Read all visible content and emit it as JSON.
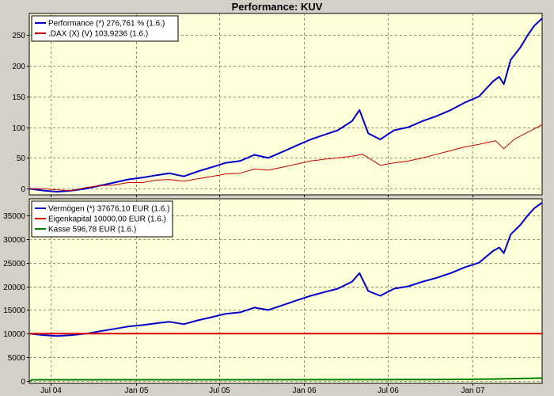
{
  "chart_data": [
    {
      "type": "line",
      "title": "Performance: KUV",
      "xlabel": "",
      "ylabel": "",
      "x_ticks": [
        "Jul 04",
        "Jan 05",
        "Jul 05",
        "Jan 06",
        "Jul 06",
        "Jan 07"
      ],
      "y_ticks": [
        "0",
        "50",
        "100",
        "150",
        "200",
        "250"
      ],
      "xlim": [
        "2004-05-15",
        "2007-06-01"
      ],
      "ylim": [
        -10,
        285
      ],
      "grid": true,
      "legend_position": "top-left",
      "series": [
        {
          "name": "Performance (*) 276,761 % (1.6.)",
          "color": "#0000cc",
          "points": [
            [
              "2004-05-15",
              0
            ],
            [
              "2004-06-15",
              -3
            ],
            [
              "2004-07-15",
              -5
            ],
            [
              "2004-08-15",
              -3
            ],
            [
              "2004-09-15",
              0
            ],
            [
              "2004-10-15",
              5
            ],
            [
              "2004-11-15",
              10
            ],
            [
              "2004-12-15",
              15
            ],
            [
              "2005-01-15",
              18
            ],
            [
              "2005-02-15",
              22
            ],
            [
              "2005-03-15",
              25
            ],
            [
              "2005-04-15",
              20
            ],
            [
              "2005-05-15",
              28
            ],
            [
              "2005-06-15",
              35
            ],
            [
              "2005-07-15",
              42
            ],
            [
              "2005-08-15",
              45
            ],
            [
              "2005-09-15",
              55
            ],
            [
              "2005-10-15",
              50
            ],
            [
              "2005-11-15",
              60
            ],
            [
              "2005-12-15",
              70
            ],
            [
              "2006-01-15",
              80
            ],
            [
              "2006-02-15",
              88
            ],
            [
              "2006-03-15",
              95
            ],
            [
              "2006-04-15",
              110
            ],
            [
              "2006-05-01",
              128
            ],
            [
              "2006-05-20",
              90
            ],
            [
              "2006-06-15",
              80
            ],
            [
              "2006-07-15",
              95
            ],
            [
              "2006-08-15",
              100
            ],
            [
              "2006-09-15",
              110
            ],
            [
              "2006-10-15",
              118
            ],
            [
              "2006-11-15",
              128
            ],
            [
              "2006-12-15",
              140
            ],
            [
              "2007-01-15",
              150
            ],
            [
              "2007-02-15",
              175
            ],
            [
              "2007-02-28",
              182
            ],
            [
              "2007-03-10",
              170
            ],
            [
              "2007-03-25",
              210
            ],
            [
              "2007-04-15",
              230
            ],
            [
              "2007-05-01",
              250
            ],
            [
              "2007-05-15",
              265
            ],
            [
              "2007-06-01",
              277
            ]
          ]
        },
        {
          "name": ".DAX (X) (V) 103,9236 (1.6.)",
          "color": "#cc0000",
          "points": [
            [
              "2004-05-15",
              0
            ],
            [
              "2004-06-15",
              0
            ],
            [
              "2004-07-15",
              -2
            ],
            [
              "2004-08-15",
              -3
            ],
            [
              "2004-09-15",
              2
            ],
            [
              "2004-10-15",
              5
            ],
            [
              "2004-11-15",
              6
            ],
            [
              "2004-12-15",
              10
            ],
            [
              "2005-01-15",
              10
            ],
            [
              "2005-02-15",
              14
            ],
            [
              "2005-03-15",
              15
            ],
            [
              "2005-04-15",
              12
            ],
            [
              "2005-05-15",
              16
            ],
            [
              "2005-06-15",
              20
            ],
            [
              "2005-07-15",
              24
            ],
            [
              "2005-08-15",
              25
            ],
            [
              "2005-09-15",
              32
            ],
            [
              "2005-10-15",
              30
            ],
            [
              "2005-11-15",
              35
            ],
            [
              "2005-12-15",
              40
            ],
            [
              "2006-01-15",
              45
            ],
            [
              "2006-02-15",
              48
            ],
            [
              "2006-03-15",
              50
            ],
            [
              "2006-04-15",
              53
            ],
            [
              "2006-05-08",
              56
            ],
            [
              "2006-06-15",
              38
            ],
            [
              "2006-07-15",
              42
            ],
            [
              "2006-08-15",
              45
            ],
            [
              "2006-09-15",
              50
            ],
            [
              "2006-10-15",
              56
            ],
            [
              "2006-11-15",
              62
            ],
            [
              "2006-12-15",
              68
            ],
            [
              "2007-01-15",
              72
            ],
            [
              "2007-02-20",
              78
            ],
            [
              "2007-03-10",
              65
            ],
            [
              "2007-04-01",
              80
            ],
            [
              "2007-05-01",
              92
            ],
            [
              "2007-06-01",
              104
            ]
          ]
        }
      ]
    },
    {
      "type": "line",
      "title": "",
      "xlabel": "",
      "ylabel": "",
      "x_ticks": [
        "Jul 04",
        "Jan 05",
        "Jul 05",
        "Jan 06",
        "Jul 06",
        "Jan 07"
      ],
      "y_ticks": [
        "0",
        "5000",
        "10000",
        "15000",
        "20000",
        "25000",
        "30000",
        "35000"
      ],
      "xlim": [
        "2004-05-15",
        "2007-06-01"
      ],
      "ylim": [
        -500,
        38500
      ],
      "grid": true,
      "legend_position": "top-left",
      "series": [
        {
          "name": "Vermögen (*) 37676,10 EUR (1.6.)",
          "color": "#0000cc",
          "points": [
            [
              "2004-05-15",
              10000
            ],
            [
              "2004-06-15",
              9700
            ],
            [
              "2004-07-15",
              9500
            ],
            [
              "2004-08-15",
              9700
            ],
            [
              "2004-09-15",
              10000
            ],
            [
              "2004-10-15",
              10500
            ],
            [
              "2004-11-15",
              11000
            ],
            [
              "2004-12-15",
              11500
            ],
            [
              "2005-01-15",
              11800
            ],
            [
              "2005-02-15",
              12200
            ],
            [
              "2005-03-15",
              12500
            ],
            [
              "2005-04-15",
              12000
            ],
            [
              "2005-05-15",
              12800
            ],
            [
              "2005-06-15",
              13500
            ],
            [
              "2005-07-15",
              14200
            ],
            [
              "2005-08-15",
              14500
            ],
            [
              "2005-09-15",
              15500
            ],
            [
              "2005-10-15",
              15000
            ],
            [
              "2005-11-15",
              16000
            ],
            [
              "2005-12-15",
              17000
            ],
            [
              "2006-01-15",
              18000
            ],
            [
              "2006-02-15",
              18800
            ],
            [
              "2006-03-15",
              19500
            ],
            [
              "2006-04-15",
              21000
            ],
            [
              "2006-05-01",
              22800
            ],
            [
              "2006-05-20",
              19000
            ],
            [
              "2006-06-15",
              18000
            ],
            [
              "2006-07-15",
              19500
            ],
            [
              "2006-08-15",
              20000
            ],
            [
              "2006-09-15",
              21000
            ],
            [
              "2006-10-15",
              21800
            ],
            [
              "2006-11-15",
              22800
            ],
            [
              "2006-12-15",
              24000
            ],
            [
              "2007-01-15",
              25000
            ],
            [
              "2007-02-15",
              27500
            ],
            [
              "2007-02-28",
              28200
            ],
            [
              "2007-03-10",
              27000
            ],
            [
              "2007-03-25",
              31000
            ],
            [
              "2007-04-15",
              33000
            ],
            [
              "2007-05-01",
              35000
            ],
            [
              "2007-05-15",
              36500
            ],
            [
              "2007-06-01",
              37676
            ]
          ]
        },
        {
          "name": "Eigenkapital 10000,00 EUR (1.6.)",
          "color": "#dd0000",
          "points": [
            [
              "2004-05-15",
              10000
            ],
            [
              "2007-06-01",
              10000
            ]
          ]
        },
        {
          "name": "Kasse 596,78 EUR (1.6.)",
          "color": "#008000",
          "points": [
            [
              "2004-05-15",
              0
            ],
            [
              "2004-05-18",
              0
            ],
            [
              "2004-05-20",
              250
            ],
            [
              "2005-07-15",
              250
            ],
            [
              "2006-10-15",
              300
            ],
            [
              "2007-02-15",
              400
            ],
            [
              "2007-06-01",
              597
            ]
          ]
        }
      ]
    }
  ]
}
